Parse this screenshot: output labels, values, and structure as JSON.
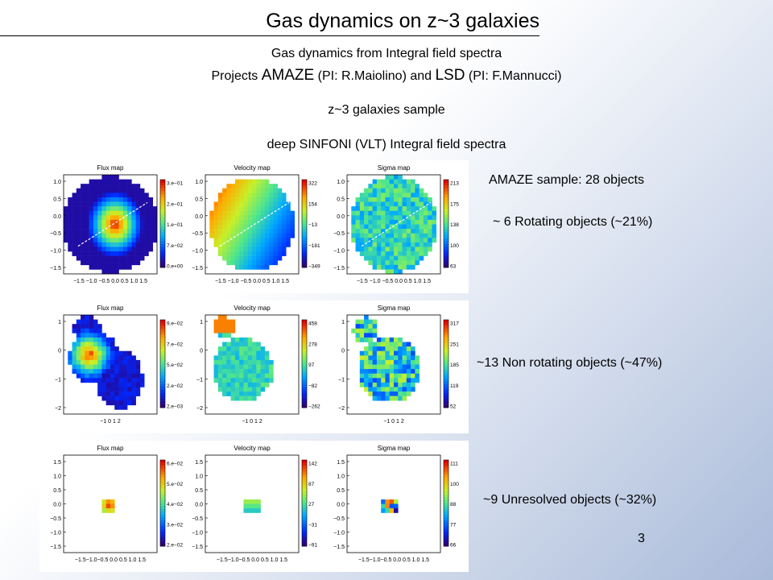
{
  "title": "Gas dynamics on z~3 galaxies",
  "intro": {
    "line1": "Gas dynamics from Integral field spectra",
    "line2_pre": "Projects ",
    "amaze": "AMAZE",
    "line2_mid": " (PI: R.Maiolino) and ",
    "lsd": "LSD",
    "line2_post": " (PI: F.Mannucci)",
    "sample": "z~3 galaxies sample",
    "spectra": "deep SINFONI (VLT) Integral field spectra"
  },
  "right_labels": {
    "sample_size": "AMAZE sample: 28 objects",
    "rotating": "~ 6 Rotating objects (~21%)",
    "non_rotating": "~13 Non rotating objects (~47%)",
    "unresolved": "~9 Unresolved objects (~32%)"
  },
  "page_number": "3",
  "panel_titles": [
    "Flux map",
    "Velocity map",
    "Sigma map"
  ],
  "panels": [
    {
      "yticks": [
        "1.0",
        "0.5",
        "0.0",
        "−0.5",
        "−1.0",
        "−1.5"
      ],
      "xticks": "−1.5 −1.0 −0.5 0.0 0.5 1.0 1.5",
      "colorbars": [
        [
          "3.e−01",
          "2.e−01",
          "1.e−01",
          "7.e−02",
          "0.e+00"
        ],
        [
          "322",
          "154",
          "−13",
          "−181",
          "−349"
        ],
        [
          "213",
          "175",
          "138",
          "100",
          "63"
        ]
      ]
    },
    {
      "yticks": [
        "1",
        "0",
        "−1",
        "−2"
      ],
      "xticks": "−1    0    1    2",
      "colorbars": [
        [
          "9.e−02",
          "7.e−02",
          "5.e−02",
          "2.e−02",
          "2.e−03"
        ],
        [
          "458",
          "278",
          "97",
          "−82",
          "−262"
        ],
        [
          "317",
          "251",
          "185",
          "119",
          "52"
        ]
      ]
    },
    {
      "yticks": [
        "1.5",
        "1.0",
        "0.5",
        "0.0",
        "−0.5",
        "−1.0",
        "−1.5"
      ],
      "xticks": "−1.5−1.0−0.5 0.0 0.5 1.0 1.5",
      "colorbars": [
        [
          "6.e−02",
          "5.e−02",
          "4.e−02",
          "3.e−02",
          "2.e−02"
        ],
        [
          "142",
          "87",
          "27",
          "−31",
          "−91"
        ],
        [
          "111",
          "100",
          "88",
          "77",
          "66"
        ]
      ]
    }
  ]
}
